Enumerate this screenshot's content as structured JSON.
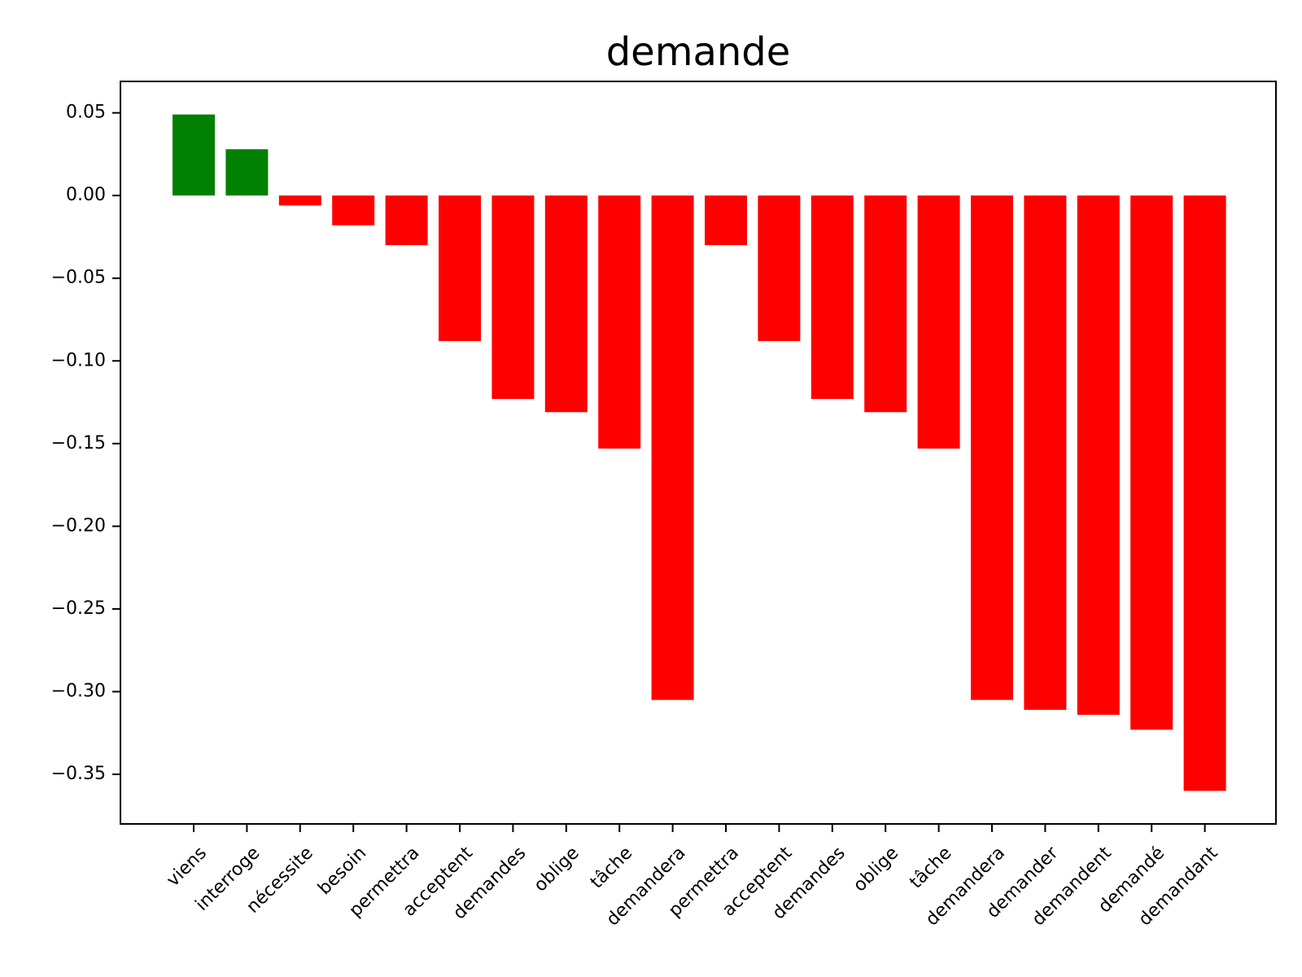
{
  "chart_data": {
    "type": "bar",
    "title": "demande",
    "xlabel": "",
    "ylabel": "",
    "categories": [
      "viens",
      "interroge",
      "nécessite",
      "besoin",
      "permettra",
      "acceptent",
      "demandes",
      "oblige",
      "tâche",
      "demandera",
      "permettra",
      "acceptent",
      "demandes",
      "oblige",
      "tâche",
      "demandera",
      "demander",
      "demandent",
      "demandé",
      "demandant"
    ],
    "values": [
      0.049,
      0.028,
      -0.006,
      -0.018,
      -0.03,
      -0.088,
      -0.123,
      -0.131,
      -0.153,
      -0.305,
      -0.03,
      -0.088,
      -0.123,
      -0.131,
      -0.153,
      -0.305,
      -0.311,
      -0.314,
      -0.323,
      -0.36
    ],
    "ylim": [
      -0.38,
      0.069
    ],
    "yticks": [
      0.05,
      0.0,
      -0.05,
      -0.1,
      -0.15,
      -0.2,
      -0.25,
      -0.3,
      -0.35
    ],
    "ytick_labels": [
      "0.05",
      "0.00",
      "−0.05",
      "−0.10",
      "−0.15",
      "−0.20",
      "−0.25",
      "−0.30",
      "−0.35"
    ],
    "positive_color": "#008000",
    "negative_color": "#ff0000",
    "grid": false,
    "legend": "none"
  }
}
